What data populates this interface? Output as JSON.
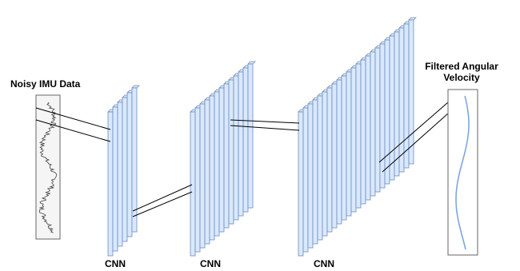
{
  "labels": {
    "input": "Noisy IMU Data",
    "output_line1": "Filtered Angular",
    "output_line2": "Velocity",
    "cnn1": "CNN",
    "cnn2": "CNN",
    "cnn3": "CNN"
  },
  "colors": {
    "slab_fill": "#dae8fc",
    "slab_stroke": "#6c8ebf",
    "box_fill": "#f5f5f5",
    "box_stroke": "#666666",
    "noisy_signal": "#444444",
    "filtered_signal": "#7ea6e0",
    "connector": "#000000"
  },
  "layers": [
    {
      "name": "cnn-block-1",
      "slab_count": 6
    },
    {
      "name": "cnn-block-2",
      "slab_count": 13
    },
    {
      "name": "cnn-block-3",
      "slab_count": 24
    }
  ]
}
